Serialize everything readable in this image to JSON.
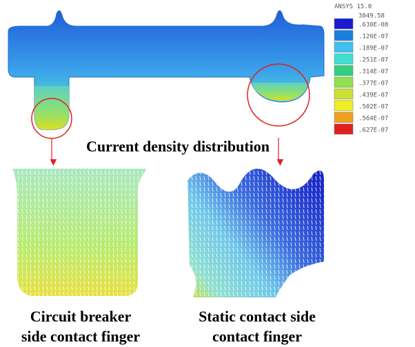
{
  "legend": {
    "title": "ANSYS 15.0",
    "labels": [
      "3049.58",
      ".630E-08",
      ".126E-07",
      ".189E-07",
      ".251E-07",
      ".314E-07",
      ".377E-07",
      ".439E-07",
      ".502E-07",
      ".564E-07",
      ".627E-07"
    ]
  },
  "heading": "Current density distribution",
  "captions": [
    {
      "lines": [
        "Circuit breaker",
        "side contact finger"
      ]
    },
    {
      "lines": [
        "Static contact side",
        "contact finger"
      ]
    }
  ]
}
